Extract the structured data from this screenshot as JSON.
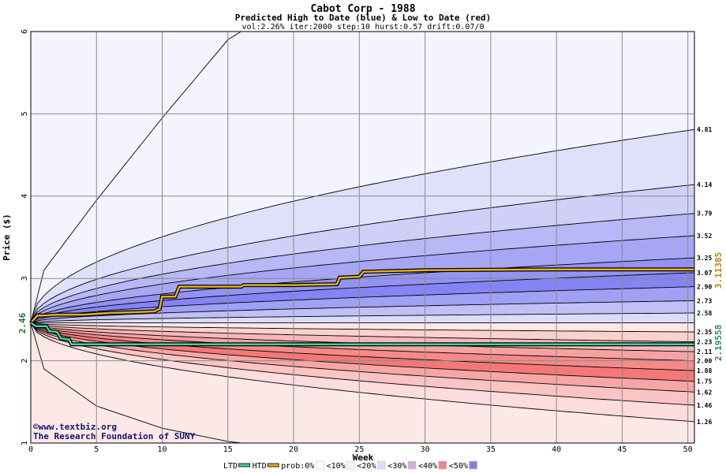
{
  "chart_data": {
    "type": "area",
    "title": "Cabot Corp - 1988",
    "subtitle": "Predicted High to Date (blue) &  Low to Date (red)",
    "params": "vol:2.26% iter:2000 step:10 hurst:0.57 drift:0.07/0",
    "xlabel": "Week",
    "ylabel": "Price ($)",
    "xlim": [
      0,
      50.5
    ],
    "ylim": [
      1,
      6
    ],
    "x_ticks": [
      0,
      5,
      10,
      15,
      20,
      25,
      30,
      35,
      40,
      45,
      50
    ],
    "y_ticks": [
      1,
      2,
      3,
      4,
      5,
      6
    ],
    "grid": true,
    "start_price": 2.46,
    "start_price_label": "2.46",
    "htd_label": "3.11385",
    "ltd_label": "2.19558",
    "htd_color": "#b8860b",
    "ltd_color": "#2e8b57",
    "upper_band_ends": [
      {
        "value": 4.81,
        "label": "4.81"
      },
      {
        "value": 4.14,
        "label": "4.14"
      },
      {
        "value": 3.79,
        "label": "3.79"
      },
      {
        "value": 3.52,
        "label": "3.52"
      },
      {
        "value": 3.25,
        "label": "3.25"
      },
      {
        "value": 3.07,
        "label": "3.07"
      },
      {
        "value": 2.9,
        "label": "2.90"
      },
      {
        "value": 2.73,
        "label": "2.73"
      },
      {
        "value": 2.58,
        "label": "2.58"
      }
    ],
    "lower_band_ends": [
      {
        "value": 2.35,
        "label": "2.35"
      },
      {
        "value": 2.23,
        "label": "2.23"
      },
      {
        "value": 2.11,
        "label": "2.11"
      },
      {
        "value": 2.0,
        "label": "2.00"
      },
      {
        "value": 1.88,
        "label": "1.88"
      },
      {
        "value": 1.75,
        "label": "1.75"
      },
      {
        "value": 1.62,
        "label": "1.62"
      },
      {
        "value": 1.46,
        "label": "1.46"
      },
      {
        "value": 1.26,
        "label": "1.26"
      }
    ],
    "outer_max_at_week": [
      [
        0,
        2.46
      ],
      [
        1,
        3.1
      ],
      [
        5,
        3.95
      ],
      [
        10,
        4.95
      ],
      [
        15,
        5.9
      ],
      [
        16,
        6.0
      ]
    ],
    "outer_min_at_week": [
      [
        0,
        2.46
      ],
      [
        1,
        1.9
      ],
      [
        5,
        1.45
      ],
      [
        10,
        1.18
      ],
      [
        15,
        1.02
      ],
      [
        16,
        1.0
      ]
    ],
    "htd_path": [
      [
        0,
        2.46
      ],
      [
        0.5,
        2.55
      ],
      [
        1,
        2.55
      ],
      [
        2,
        2.56
      ],
      [
        4,
        2.56
      ],
      [
        6,
        2.58
      ],
      [
        8,
        2.59
      ],
      [
        9.4,
        2.6
      ],
      [
        9.8,
        2.63
      ],
      [
        10,
        2.78
      ],
      [
        11,
        2.78
      ],
      [
        11.3,
        2.9
      ],
      [
        14,
        2.9
      ],
      [
        16,
        2.9
      ],
      [
        16.2,
        2.92
      ],
      [
        20,
        2.92
      ],
      [
        23.3,
        2.93
      ],
      [
        23.5,
        3.01
      ],
      [
        25,
        3.02
      ],
      [
        25.3,
        3.08
      ],
      [
        30,
        3.1
      ],
      [
        40,
        3.11
      ],
      [
        50.5,
        3.11
      ]
    ],
    "ltd_path": [
      [
        0,
        2.46
      ],
      [
        0.4,
        2.42
      ],
      [
        1.2,
        2.42
      ],
      [
        1.4,
        2.36
      ],
      [
        2,
        2.35
      ],
      [
        2.3,
        2.27
      ],
      [
        2.9,
        2.26
      ],
      [
        3.1,
        2.2
      ],
      [
        10,
        2.2
      ],
      [
        20,
        2.2
      ],
      [
        30,
        2.2
      ],
      [
        40,
        2.2
      ],
      [
        50.5,
        2.2
      ]
    ]
  },
  "credit": {
    "site": "www.textbiz.org",
    "org": "The Research Foundation of SUNY"
  },
  "legend": [
    {
      "label": "LTD",
      "swatch": "#3cd3a0",
      "kind": "line"
    },
    {
      "label": "HTD",
      "swatch": "#e0b020",
      "kind": "line"
    },
    {
      "label": "prob:0%",
      "swatch": "#ffffff",
      "kind": "box"
    },
    {
      "label": "<10%",
      "swatch": "#f4f4ff",
      "kind": "box"
    },
    {
      "label": "<20%",
      "swatch": "#dedcfa",
      "kind": "box"
    },
    {
      "label": "<30%",
      "swatch": "#d6aadc",
      "kind": "box"
    },
    {
      "label": "<40%",
      "swatch": "#e6888e",
      "kind": "box"
    },
    {
      "label": "<50%",
      "swatch": "#8c78e6",
      "kind": "box"
    }
  ],
  "colors": {
    "upper_fills": [
      "#f4f4ff",
      "#e0e0fb",
      "#cfcff8",
      "#b8b8f6",
      "#a6a6f5",
      "#9393f4",
      "#8484f5",
      "#a0a0f5",
      "#c0c0f7",
      "#dcdcfa"
    ],
    "lower_fills": [
      "#fde6e6",
      "#fbd0d0",
      "#f9b8b8",
      "#f7a2a2",
      "#f68a8a",
      "#f57878",
      "#f7a6a6",
      "#fac4c4",
      "#fcdcdc",
      "#fef2f2"
    ],
    "gridline": "#8a8a8a"
  }
}
